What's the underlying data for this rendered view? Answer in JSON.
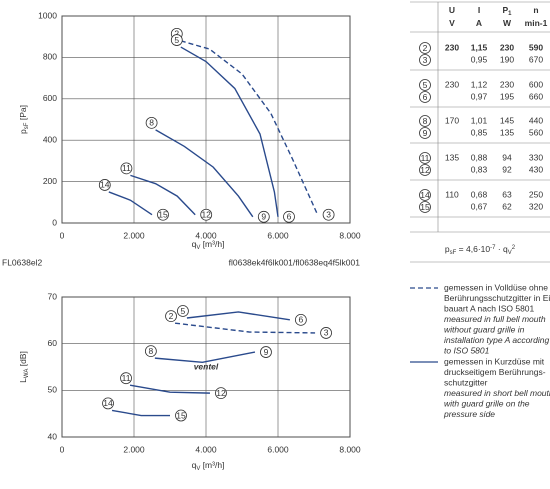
{
  "chart_data": [
    {
      "type": "line",
      "code": "FL0638el2",
      "source": "fl0638ek4f6lk001/fl0638eq4f5lk001",
      "x_label": {
        "main": "q",
        "sub": "V",
        "unit": " [m³/h]"
      },
      "y_label": {
        "main": "p",
        "sub": "sF",
        "unit": " [Pa]"
      },
      "xlim": [
        0,
        8000
      ],
      "xticks": [
        0,
        {
          "value": 2000,
          "label": "2.000"
        },
        {
          "value": 4000,
          "label": "4.000"
        },
        {
          "value": 6000,
          "label": "6.000"
        },
        {
          "value": 8000,
          "label": "8.000"
        }
      ],
      "ylim": [
        0,
        1000
      ],
      "yticks": [
        0,
        200,
        400,
        600,
        800,
        1000
      ],
      "grid": true,
      "series": [
        {
          "name": "2",
          "end_label": "3",
          "dashed": true,
          "color": "#2a4a8c",
          "x": [
            3300,
            4100,
            5000,
            5800,
            6400,
            7100
          ],
          "values": [
            880,
            840,
            720,
            530,
            310,
            40
          ]
        },
        {
          "name": "5",
          "end_label": "6",
          "color": "#2a4a8c",
          "x": [
            3300,
            4000,
            4800,
            5500,
            5900,
            6000
          ],
          "values": [
            850,
            780,
            650,
            430,
            150,
            30
          ]
        },
        {
          "name": "8",
          "end_label": "9",
          "color": "#2a4a8c",
          "x": [
            2600,
            3400,
            4200,
            4900,
            5300
          ],
          "values": [
            450,
            370,
            270,
            130,
            30
          ]
        },
        {
          "name": "11",
          "end_label": "12",
          "color": "#2a4a8c",
          "x": [
            1900,
            2600,
            3200,
            3700
          ],
          "values": [
            230,
            190,
            130,
            40
          ]
        },
        {
          "name": "14",
          "end_label": "15",
          "color": "#2a4a8c",
          "x": [
            1300,
            1900,
            2500
          ],
          "values": [
            150,
            110,
            40
          ]
        }
      ]
    },
    {
      "type": "line",
      "watermark": "ventel",
      "x_label": {
        "main": "q",
        "sub": "V",
        "unit": " [m³/h]"
      },
      "y_label": {
        "main": "L",
        "sub": "WA",
        "unit": " [dB]"
      },
      "xlim": [
        0,
        8000
      ],
      "xticks": [
        0,
        {
          "value": 2000,
          "label": "2.000"
        },
        {
          "value": 4000,
          "label": "4.000"
        },
        {
          "value": 6000,
          "label": "6.000"
        },
        {
          "value": 8000,
          "label": "8.000"
        }
      ],
      "ylim": [
        40,
        70
      ],
      "yticks": [
        40,
        50,
        60,
        70
      ],
      "grid": true,
      "series": [
        {
          "name": "5",
          "end_label": "6",
          "color": "#2a4a8c",
          "x": [
            3470,
            4900,
            6330
          ],
          "values": [
            65.5,
            66.8,
            65.1
          ]
        },
        {
          "name": "2",
          "end_label": "3",
          "dashed": true,
          "color": "#2a4a8c",
          "x": [
            3140,
            5200,
            7030
          ],
          "values": [
            64.4,
            62.5,
            62.3
          ]
        },
        {
          "name": "8",
          "end_label": "9",
          "color": "#2a4a8c",
          "x": [
            2580,
            3900,
            5360
          ],
          "values": [
            56.9,
            56.0,
            58.2
          ]
        },
        {
          "name": "11",
          "end_label": "12",
          "color": "#2a4a8c",
          "x": [
            1890,
            3000,
            4110
          ],
          "values": [
            51.1,
            49.6,
            49.4
          ]
        },
        {
          "name": "14",
          "end_label": "15",
          "color": "#2a4a8c",
          "x": [
            1390,
            2200,
            3000
          ],
          "values": [
            45.7,
            44.6,
            44.6
          ]
        }
      ]
    }
  ],
  "table": {
    "header": [
      [
        "U",
        "I",
        "P",
        "n"
      ],
      [
        "V",
        "A",
        "W",
        "min-1"
      ]
    ],
    "header_sub": "1",
    "rows": [
      [
        "2",
        "230",
        "1,15",
        "230",
        "590"
      ],
      [
        "3",
        null,
        "0,95",
        "190",
        "670"
      ],
      [
        "5",
        "230",
        "1,12",
        "230",
        "600"
      ],
      [
        "6",
        null,
        "0,97",
        "195",
        "660"
      ],
      [
        "8",
        "170",
        "1,01",
        "145",
        "440"
      ],
      [
        "9",
        null,
        "0,85",
        "135",
        "560"
      ],
      [
        "11",
        "135",
        "0,88",
        "94",
        "330"
      ],
      [
        "12",
        null,
        "0,83",
        "92",
        "430"
      ],
      [
        "14",
        "110",
        "0,68",
        "63",
        "250"
      ],
      [
        "15",
        null,
        "0,67",
        "62",
        "320"
      ]
    ],
    "formula": [
      "p",
      "sF",
      " = 4,6·10",
      "-7",
      " · q",
      "V",
      "2"
    ]
  },
  "legend": [
    {
      "dashed": true,
      "lines": [
        "gemessen in Volldüse ohne",
        "Berührungsschutzgitter in Ein-",
        "bauart A nach ISO 5801"
      ],
      "italic": [
        "measured in full bell mouth",
        "without guard grille in",
        "installation type A according",
        "to ISO 5801"
      ]
    },
    {
      "dashed": false,
      "lines": [
        "gemessen in Kurzdüse mit",
        "druckseitigem Berührungs-",
        "schutzgitter"
      ],
      "italic": [
        "measured in short bell mouth",
        "with guard grille on the",
        "pressure side"
      ]
    }
  ]
}
